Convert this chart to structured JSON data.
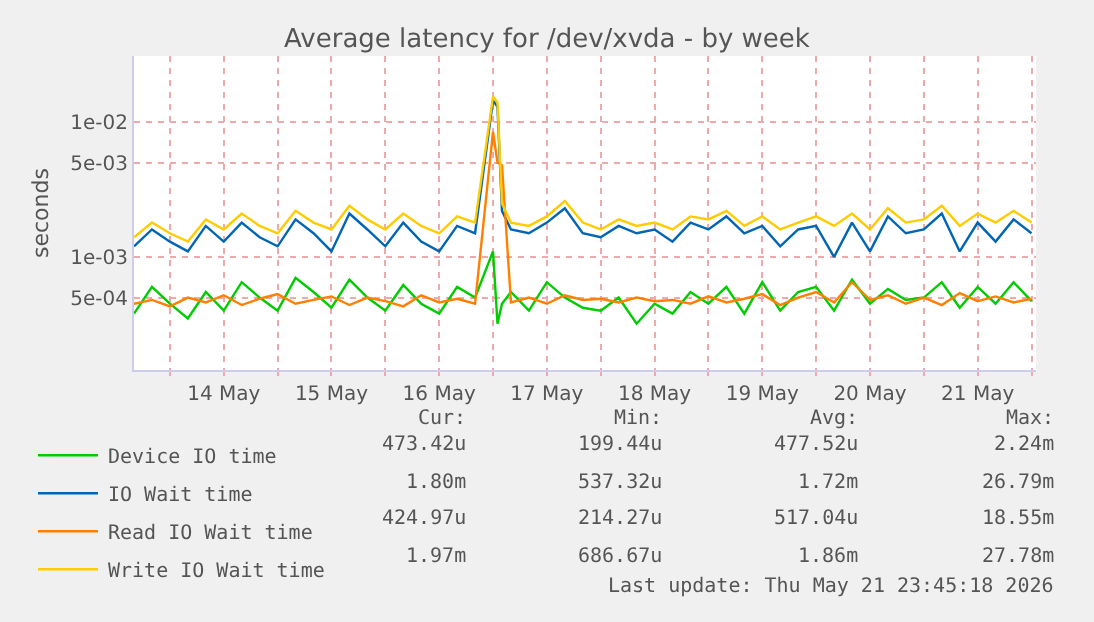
{
  "chart_data": {
    "type": "line",
    "title": "Average latency for /dev/xvda - by week",
    "ylabel": "seconds",
    "x": [
      "2026-05-13T16:00",
      "2026-05-13T20:00",
      "2026-05-14T00:00",
      "2026-05-14T04:00",
      "2026-05-14T08:00",
      "2026-05-14T12:00",
      "2026-05-14T16:00",
      "2026-05-14T20:00",
      "2026-05-15T00:00",
      "2026-05-15T04:00",
      "2026-05-15T08:00",
      "2026-05-15T12:00",
      "2026-05-15T16:00",
      "2026-05-15T20:00",
      "2026-05-16T00:00",
      "2026-05-16T04:00",
      "2026-05-16T08:00",
      "2026-05-16T12:00",
      "2026-05-16T16:00",
      "2026-05-16T20:00",
      "2026-05-17T00:00",
      "2026-05-17T01:00",
      "2026-05-17T02:00",
      "2026-05-17T04:00",
      "2026-05-17T08:00",
      "2026-05-17T12:00",
      "2026-05-17T16:00",
      "2026-05-17T20:00",
      "2026-05-18T00:00",
      "2026-05-18T04:00",
      "2026-05-18T08:00",
      "2026-05-18T12:00",
      "2026-05-18T16:00",
      "2026-05-18T20:00",
      "2026-05-19T00:00",
      "2026-05-19T04:00",
      "2026-05-19T08:00",
      "2026-05-19T12:00",
      "2026-05-19T16:00",
      "2026-05-19T20:00",
      "2026-05-20T00:00",
      "2026-05-20T04:00",
      "2026-05-20T08:00",
      "2026-05-20T12:00",
      "2026-05-20T16:00",
      "2026-05-20T20:00",
      "2026-05-21T00:00",
      "2026-05-21T04:00",
      "2026-05-21T08:00",
      "2026-05-21T12:00",
      "2026-05-21T16:00",
      "2026-05-21T20:00",
      "2026-05-22T00:00"
    ],
    "series": [
      {
        "name": "Device IO time",
        "color": "#00cc00",
        "values": [
          0.00038,
          0.0006,
          0.00045,
          0.00035,
          0.00055,
          0.0004,
          0.00065,
          0.0005,
          0.0004,
          0.0007,
          0.00055,
          0.00042,
          0.00068,
          0.0005,
          0.0004,
          0.00062,
          0.00045,
          0.00038,
          0.0006,
          0.0005,
          0.0011,
          0.00032,
          0.00045,
          0.00055,
          0.0004,
          0.00065,
          0.0005,
          0.00042,
          0.0004,
          0.0005,
          0.00032,
          0.00045,
          0.00038,
          0.00055,
          0.00045,
          0.0006,
          0.00038,
          0.00065,
          0.0004,
          0.00055,
          0.0006,
          0.0004,
          0.00068,
          0.00045,
          0.00058,
          0.00048,
          0.0005,
          0.00065,
          0.00042,
          0.0006,
          0.00045,
          0.00065,
          0.00047
        ]
      },
      {
        "name": "IO Wait time",
        "color": "#0066b3",
        "values": [
          0.0012,
          0.0016,
          0.0013,
          0.0011,
          0.0017,
          0.0013,
          0.0018,
          0.0014,
          0.0012,
          0.0019,
          0.0015,
          0.0011,
          0.0021,
          0.0016,
          0.0012,
          0.0018,
          0.0013,
          0.0011,
          0.0017,
          0.0015,
          0.0145,
          0.013,
          0.0022,
          0.0016,
          0.0015,
          0.0018,
          0.0023,
          0.0015,
          0.0014,
          0.0017,
          0.0015,
          0.0016,
          0.0013,
          0.0018,
          0.0016,
          0.002,
          0.0015,
          0.0017,
          0.0012,
          0.0016,
          0.0017,
          0.001,
          0.0018,
          0.0011,
          0.002,
          0.0015,
          0.0016,
          0.0021,
          0.0011,
          0.0018,
          0.0013,
          0.0019,
          0.0015
        ]
      },
      {
        "name": "Read IO Wait time",
        "color": "#ff8000",
        "values": [
          0.00045,
          0.00048,
          0.00043,
          0.0005,
          0.00046,
          0.00052,
          0.00044,
          0.00049,
          0.00053,
          0.00045,
          0.00048,
          0.00051,
          0.00044,
          0.0005,
          0.00047,
          0.00043,
          0.00052,
          0.00046,
          0.00049,
          0.00045,
          0.0085,
          0.005,
          0.0048,
          0.00046,
          0.0005,
          0.00045,
          0.00052,
          0.00048,
          0.00049,
          0.00046,
          0.0005,
          0.00047,
          0.00048,
          0.00045,
          0.00051,
          0.00046,
          0.00049,
          0.00053,
          0.00044,
          0.0005,
          0.00055,
          0.00046,
          0.00065,
          0.00048,
          0.00052,
          0.00045,
          0.0005,
          0.00044,
          0.00054,
          0.00047,
          0.00051,
          0.00046,
          0.00049
        ]
      },
      {
        "name": "Write IO Wait time",
        "color": "#ffcc00",
        "values": [
          0.0014,
          0.0018,
          0.0015,
          0.0013,
          0.0019,
          0.0016,
          0.0021,
          0.0017,
          0.0015,
          0.0022,
          0.0018,
          0.0016,
          0.0024,
          0.0019,
          0.0016,
          0.0021,
          0.0017,
          0.0015,
          0.002,
          0.0018,
          0.0155,
          0.014,
          0.0025,
          0.0018,
          0.0017,
          0.002,
          0.0026,
          0.0018,
          0.0016,
          0.0019,
          0.0017,
          0.0018,
          0.0016,
          0.002,
          0.0019,
          0.0022,
          0.0017,
          0.002,
          0.0016,
          0.0018,
          0.002,
          0.0017,
          0.0021,
          0.0016,
          0.0023,
          0.0018,
          0.0019,
          0.0024,
          0.0017,
          0.0021,
          0.0018,
          0.0022,
          0.0018
        ]
      }
    ],
    "xlim": [
      "2026-05-13T16:00",
      "2026-05-22T01:00"
    ],
    "xticks": [
      {
        "value": "2026-05-14T00:00",
        "label": null
      },
      {
        "value": "2026-05-14T12:00",
        "label": "14 May"
      },
      {
        "value": "2026-05-15T00:00",
        "label": null
      },
      {
        "value": "2026-05-15T12:00",
        "label": "15 May"
      },
      {
        "value": "2026-05-16T00:00",
        "label": null
      },
      {
        "value": "2026-05-16T12:00",
        "label": "16 May"
      },
      {
        "value": "2026-05-17T00:00",
        "label": null
      },
      {
        "value": "2026-05-17T12:00",
        "label": "17 May"
      },
      {
        "value": "2026-05-18T00:00",
        "label": null
      },
      {
        "value": "2026-05-18T12:00",
        "label": "18 May"
      },
      {
        "value": "2026-05-19T00:00",
        "label": null
      },
      {
        "value": "2026-05-19T12:00",
        "label": "19 May"
      },
      {
        "value": "2026-05-20T00:00",
        "label": null
      },
      {
        "value": "2026-05-20T12:00",
        "label": "20 May"
      },
      {
        "value": "2026-05-21T00:00",
        "label": null
      },
      {
        "value": "2026-05-21T12:00",
        "label": "21 May"
      },
      {
        "value": "2026-05-22T00:00",
        "label": null
      }
    ],
    "ylim": [
      0.000145,
      0.031
    ],
    "yticks": [
      {
        "value": 0.0005,
        "label": "5e-04"
      },
      {
        "value": 0.001,
        "label": "1e-03"
      },
      {
        "value": 0.005,
        "label": "5e-03"
      },
      {
        "value": 0.01,
        "label": "1e-02"
      }
    ],
    "log": true,
    "grid": true,
    "legend": "bottom",
    "annotations": [
      "Cur:",
      "Min:",
      "Avg:",
      "Max:",
      "473.42u",
      "199.44u",
      "477.52u",
      "2.24m",
      "1.80m",
      "537.32u",
      "1.72m",
      "26.79m",
      "424.97u",
      "214.27u",
      "517.04u",
      "18.55m",
      "1.97m",
      "686.67u",
      "1.86m",
      "27.78m",
      "Last update: Thu May 21 23:45:18 2026"
    ]
  }
}
